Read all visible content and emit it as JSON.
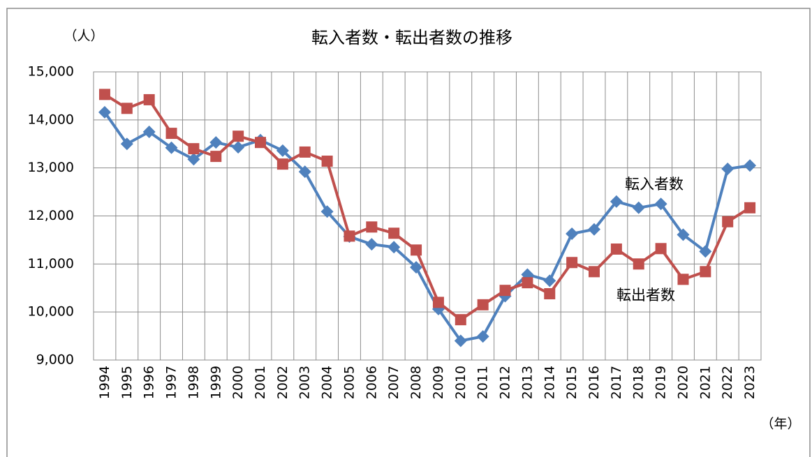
{
  "chart_data": {
    "type": "line",
    "title": "転入者数・転出者数の推移",
    "y_label": "（人）",
    "x_label": "（年）",
    "categories": [
      "1994",
      "1995",
      "1996",
      "1997",
      "1998",
      "1999",
      "2000",
      "2001",
      "2002",
      "2003",
      "2004",
      "2005",
      "2006",
      "2007",
      "2008",
      "2009",
      "2010",
      "2011",
      "2012",
      "2013",
      "2014",
      "2015",
      "2016",
      "2017",
      "2018",
      "2019",
      "2020",
      "2021",
      "2022",
      "2023"
    ],
    "series": [
      {
        "name": "転入者数",
        "color": "#4f81bd",
        "marker": "diamond",
        "values": [
          14160,
          13500,
          13750,
          13420,
          13180,
          13530,
          13430,
          13580,
          13360,
          12920,
          12090,
          11570,
          11410,
          11350,
          10930,
          10060,
          9400,
          9490,
          10330,
          10780,
          10650,
          11630,
          11720,
          12300,
          12170,
          12250,
          11610,
          11260,
          12980,
          13050
        ]
      },
      {
        "name": "転出者数",
        "color": "#c0504d",
        "marker": "square",
        "values": [
          14530,
          14240,
          14420,
          13720,
          13400,
          13240,
          13660,
          13530,
          13080,
          13330,
          13140,
          11580,
          11770,
          11640,
          11290,
          10200,
          9840,
          10150,
          10450,
          10610,
          10380,
          11030,
          10840,
          11310,
          11000,
          11320,
          10680,
          10840,
          11880,
          12170
        ]
      }
    ],
    "ylim": [
      9000,
      15000
    ],
    "yticks": [
      {
        "value": 9000,
        "label": "9,000"
      },
      {
        "value": 10000,
        "label": "10,000"
      },
      {
        "value": 11000,
        "label": "11,000"
      },
      {
        "value": 12000,
        "label": "12,000"
      },
      {
        "value": 13000,
        "label": "13,000"
      },
      {
        "value": 14000,
        "label": "14,000"
      },
      {
        "value": 15000,
        "label": "15,000"
      }
    ],
    "grid": true
  }
}
